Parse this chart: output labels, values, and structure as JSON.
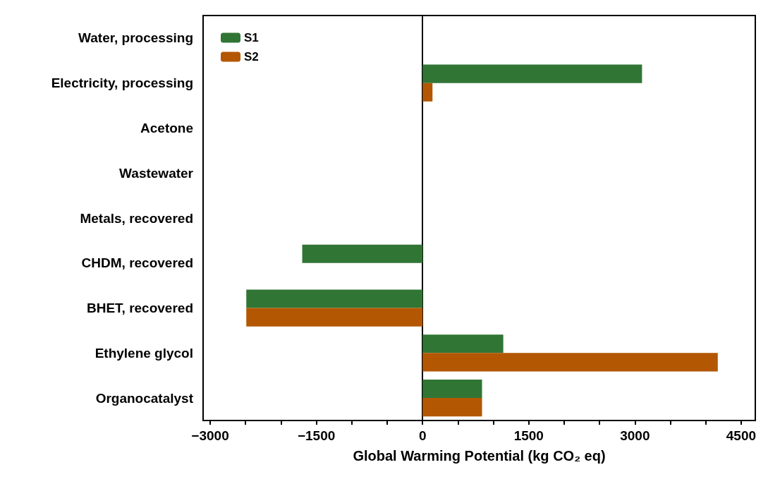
{
  "chart_data": {
    "type": "bar",
    "orientation": "horizontal",
    "xlabel": "Global Warming Potential (kg CO₂ eq)",
    "categories": [
      "Water, processing",
      "Electricity, processing",
      "Acetone",
      "Wastewater",
      "Metals, recovered",
      "CHDM, recovered",
      "BHET, recovered",
      "Ethylene glycol",
      "Organocatalyst"
    ],
    "series": [
      {
        "name": "S1",
        "color": "#317534",
        "values": [
          null,
          3100,
          null,
          null,
          null,
          -1700,
          -2490,
          1140,
          840
        ]
      },
      {
        "name": "S2",
        "color": "#b35702",
        "values": [
          null,
          140,
          null,
          null,
          null,
          null,
          -2490,
          4170,
          840
        ]
      }
    ],
    "xlim": [
      -3100,
      4700
    ],
    "xticks": [
      {
        "value": -3000,
        "label": "−3000"
      },
      {
        "value": -2500,
        "label": null
      },
      {
        "value": -2000,
        "label": null
      },
      {
        "value": -1500,
        "label": "−1500"
      },
      {
        "value": -1000,
        "label": null
      },
      {
        "value": -500,
        "label": null
      },
      0,
      {
        "value": 500,
        "label": null
      },
      {
        "value": 1000,
        "label": null
      },
      1500,
      {
        "value": 2000,
        "label": null
      },
      {
        "value": 2500,
        "label": null
      },
      3000,
      {
        "value": 3500,
        "label": null
      },
      {
        "value": 4000,
        "label": null
      },
      4500
    ],
    "legend": "top left"
  }
}
